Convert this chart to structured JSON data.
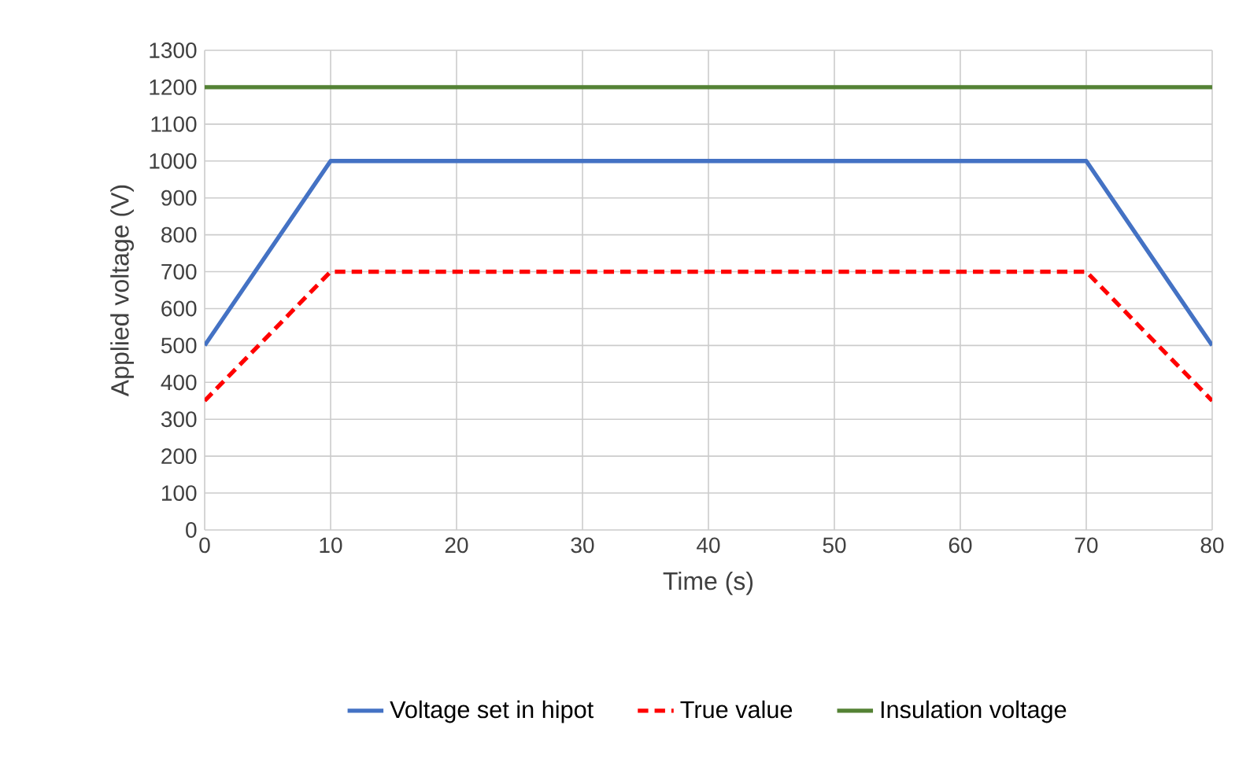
{
  "chart_data": {
    "type": "line",
    "xlabel": "Time (s)",
    "ylabel": "Applied voltage (V)",
    "xlim": [
      0,
      80
    ],
    "xticks": [
      0,
      10,
      20,
      30,
      40,
      50,
      60,
      70,
      80
    ],
    "ylim": [
      0,
      1300
    ],
    "yticks": [
      0,
      100,
      200,
      300,
      400,
      500,
      600,
      700,
      800,
      900,
      1000,
      1100,
      1200,
      1300
    ],
    "grid": true,
    "legend": "bottom",
    "marker": "none",
    "series": [
      {
        "name": "Voltage set in hipot",
        "color": "#4472c4",
        "line_style": "solid",
        "x": [
          0,
          10,
          70,
          80
        ],
        "values": [
          500,
          1000,
          1000,
          500
        ]
      },
      {
        "name": "True value",
        "color": "#ff0000",
        "line_style": "dashed",
        "x": [
          0,
          10,
          70,
          80
        ],
        "values": [
          350,
          700,
          700,
          350
        ]
      },
      {
        "name": "Insulation voltage",
        "color": "#548235",
        "line_style": "solid",
        "x": [
          0,
          80
        ],
        "values": [
          1200,
          1200
        ]
      }
    ]
  }
}
